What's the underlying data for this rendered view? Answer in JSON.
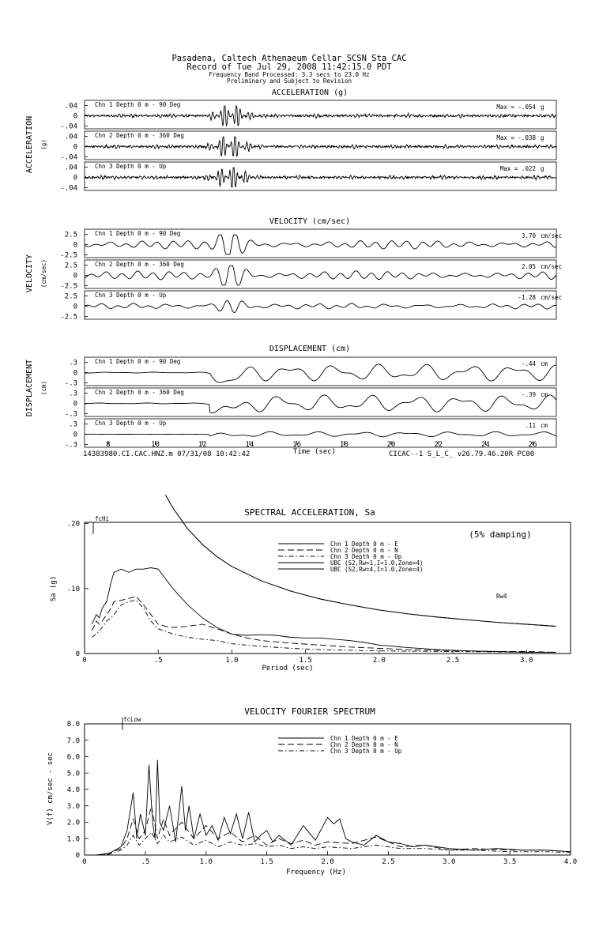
{
  "header": {
    "line1": "Pasadena, Caltech Athenaeum Cellar    SCSN Sta CAC",
    "line2": "Record of Tue Jul 29, 2008 11:42:15.0 PDT",
    "line3": "Frequency Band Processed: 3.3 secs to 23.0 Hz",
    "line4": "Preliminary and Subject to Revision"
  },
  "traces": {
    "xticks": [
      "8",
      "10",
      "12",
      "14",
      "16",
      "18",
      "20",
      "22",
      "24",
      "26"
    ],
    "xlabel": "Time (sec)",
    "footer_left": "14383980.CI.CAC.HNZ.m 07/31/08 10:42:42",
    "footer_right": "CICAC--1  S_L_C_  v26.79.46.20R PC00",
    "groups": [
      {
        "title": "ACCELERATION (g)",
        "side_label": "ACCELERATION",
        "side_unit": "(g)",
        "unit": "g",
        "max_prefix": "Max =",
        "channels": [
          {
            "label": "Chn 1  Depth   0 m - 90 Deg",
            "peak": "-.054",
            "ticks": [
              ".04",
              "0",
              "-.04"
            ]
          },
          {
            "label": "Chn 2  Depth   0 m - 360 Deg",
            "peak": "-.038",
            "ticks": [
              ".04",
              "0",
              "-.04"
            ]
          },
          {
            "label": "Chn 3  Depth   0 m - Up",
            "peak": ".022",
            "ticks": [
              ".04",
              "0",
              "-.04"
            ]
          }
        ]
      },
      {
        "title": "VELOCITY (cm/sec)",
        "side_label": "VELOCITY",
        "side_unit": "(cm/sec)",
        "unit": "cm/sec",
        "max_prefix": "",
        "channels": [
          {
            "label": "Chn 1  Depth   0 m - 90 Deg",
            "peak": "3.70",
            "ticks": [
              "2.5",
              "0",
              "-2.5"
            ]
          },
          {
            "label": "Chn 2  Depth   0 m - 360 Deg",
            "peak": "2.05",
            "ticks": [
              "2.5",
              "0",
              "-2.5"
            ]
          },
          {
            "label": "Chn 3  Depth   0 m - Up",
            "peak": "-1.28",
            "ticks": [
              "2.5",
              "0",
              "-2.5"
            ]
          }
        ]
      },
      {
        "title": "DISPLACEMENT (cm)",
        "side_label": "DISPLACEMENT",
        "side_unit": "(cm)",
        "unit": "cm",
        "max_prefix": "",
        "channels": [
          {
            "label": "Chn 1  Depth   0 m - 90 Deg",
            "peak": "-.44",
            "ticks": [
              ".3",
              "0",
              "-.3"
            ]
          },
          {
            "label": "Chn 2  Depth   0 m - 360 Deg",
            "peak": "-.39",
            "ticks": [
              ".3",
              "0",
              "-.3"
            ]
          },
          {
            "label": "Chn 3  Depth   0 m - Up",
            "peak": ".11",
            "ticks": [
              ".3",
              "0",
              "-.3"
            ]
          }
        ]
      }
    ]
  },
  "chart_data": [
    {
      "type": "line",
      "title": "SPECTRAL ACCELERATION, Sa",
      "xlabel": "Period (sec)",
      "ylabel": "Sa (g)",
      "xlim": [
        0,
        3.2
      ],
      "ylim": [
        0,
        0.2
      ],
      "xticks": [
        0,
        0.5,
        1.0,
        1.5,
        2.0,
        2.5,
        3.0
      ],
      "xtick_labels": [
        "0",
        ".5",
        "1.0",
        "1.5",
        "2.0",
        "2.5",
        "3.0"
      ],
      "yticks": [
        0,
        0.1,
        0.2
      ],
      "ytick_labels": [
        "0",
        ".10",
        ".20"
      ],
      "annotations": [
        "(5% damping)",
        "fcHi",
        "Rw4"
      ],
      "legend_placement": "top-right",
      "legend": [
        {
          "label": "Chn 1  Depth   0 m - E",
          "style": "solid"
        },
        {
          "label": "Chn 2  Depth   0 m - N",
          "style": "dashed"
        },
        {
          "label": "Chn 3  Depth   0 m - Up",
          "style": "dashdot"
        },
        {
          "label": "UBC (S2,Rw=1,I=1.0,Zone=4)",
          "style": "solid"
        },
        {
          "label": "UBC (S2,Rw=4,I=1.0,Zone=4)",
          "style": "solid"
        }
      ],
      "series": [
        {
          "name": "Chn 1  Depth   0 m - E",
          "x": [
            0.05,
            0.08,
            0.1,
            0.12,
            0.15,
            0.18,
            0.2,
            0.25,
            0.3,
            0.35,
            0.4,
            0.45,
            0.5,
            0.55,
            0.6,
            0.7,
            0.8,
            0.9,
            1.0,
            1.1,
            1.2,
            1.3,
            1.4,
            1.5,
            1.6,
            1.7,
            1.8,
            1.9,
            2.0,
            2.2,
            2.4,
            2.6,
            2.8,
            3.0,
            3.2
          ],
          "y": [
            0.045,
            0.06,
            0.055,
            0.07,
            0.08,
            0.11,
            0.125,
            0.13,
            0.125,
            0.13,
            0.13,
            0.132,
            0.13,
            0.115,
            0.1,
            0.075,
            0.055,
            0.04,
            0.03,
            0.028,
            0.029,
            0.028,
            0.025,
            0.024,
            0.024,
            0.022,
            0.02,
            0.017,
            0.013,
            0.009,
            0.006,
            0.004,
            0.003,
            0.002,
            0.002
          ]
        },
        {
          "name": "Chn 2  Depth   0 m - N",
          "x": [
            0.05,
            0.08,
            0.1,
            0.12,
            0.15,
            0.18,
            0.2,
            0.25,
            0.3,
            0.35,
            0.4,
            0.45,
            0.5,
            0.55,
            0.6,
            0.7,
            0.8,
            0.9,
            1.0,
            1.1,
            1.2,
            1.4,
            1.6,
            1.8,
            2.0,
            2.2,
            2.4,
            2.6,
            2.8,
            3.0,
            3.2
          ],
          "y": [
            0.035,
            0.05,
            0.045,
            0.05,
            0.06,
            0.07,
            0.08,
            0.082,
            0.085,
            0.088,
            0.075,
            0.06,
            0.045,
            0.042,
            0.04,
            0.042,
            0.045,
            0.038,
            0.03,
            0.024,
            0.02,
            0.016,
            0.013,
            0.01,
            0.008,
            0.006,
            0.005,
            0.004,
            0.003,
            0.003,
            0.002
          ]
        },
        {
          "name": "Chn 3  Depth   0 m - Up",
          "x": [
            0.05,
            0.08,
            0.1,
            0.12,
            0.15,
            0.18,
            0.2,
            0.25,
            0.3,
            0.35,
            0.4,
            0.45,
            0.5,
            0.6,
            0.7,
            0.8,
            0.9,
            1.0,
            1.2,
            1.4,
            1.6,
            1.8,
            2.0,
            2.5,
            3.0,
            3.2
          ],
          "y": [
            0.025,
            0.03,
            0.035,
            0.04,
            0.05,
            0.055,
            0.06,
            0.075,
            0.08,
            0.082,
            0.07,
            0.05,
            0.038,
            0.03,
            0.025,
            0.022,
            0.02,
            0.015,
            0.011,
            0.008,
            0.006,
            0.005,
            0.004,
            0.003,
            0.002,
            0.002
          ]
        },
        {
          "name": "UBC (S2,Rw=1,I=1.0,Zone=4)",
          "x": [
            0.55,
            0.6,
            0.7,
            0.8,
            0.9,
            1.0,
            1.2,
            1.4,
            1.6,
            1.8,
            2.0,
            2.2,
            2.4,
            2.6,
            2.8,
            3.0,
            3.2
          ],
          "y": [
            0.244,
            0.224,
            0.192,
            0.168,
            0.149,
            0.134,
            0.112,
            0.096,
            0.084,
            0.075,
            0.067,
            0.061,
            0.056,
            0.052,
            0.048,
            0.045,
            0.042
          ]
        },
        {
          "name": "UBC (S2,Rw=4,I=1.0,Zone=4)",
          "x": [
            0.55,
            0.6,
            0.7,
            0.8,
            0.9,
            1.0,
            1.2,
            1.4,
            1.6,
            1.8,
            2.0,
            2.2,
            2.4,
            2.6,
            2.8,
            3.0,
            3.2
          ],
          "y": [
            0.244,
            0.224,
            0.192,
            0.168,
            0.149,
            0.134,
            0.112,
            0.096,
            0.084,
            0.075,
            0.067,
            0.061,
            0.056,
            0.052,
            0.048,
            0.045,
            0.042
          ]
        }
      ]
    },
    {
      "type": "line",
      "title": "VELOCITY FOURIER SPECTRUM",
      "xlabel": "Frequency (Hz)",
      "ylabel": "V(f)   cm/sec - sec",
      "xlim": [
        0,
        4.0
      ],
      "ylim": [
        0,
        8.0
      ],
      "xticks": [
        0,
        0.5,
        1.0,
        1.5,
        2.0,
        2.5,
        3.0,
        3.5,
        4.0
      ],
      "xtick_labels": [
        "0",
        ".5",
        "1.0",
        "1.5",
        "2.0",
        "2.5",
        "3.0",
        "3.5",
        "4.0"
      ],
      "yticks": [
        0,
        1,
        2,
        3,
        4,
        5,
        6,
        7,
        8
      ],
      "ytick_labels": [
        "0",
        "1.0",
        "2.0",
        "3.0",
        "4.0",
        "5.0",
        "6.0",
        "7.0",
        "8.0"
      ],
      "annotations": [
        "fcLow"
      ],
      "legend_placement": "top-center",
      "legend": [
        {
          "label": "Chn 1  Depth   0 m - E",
          "style": "solid"
        },
        {
          "label": "Chn 2  Depth   0 m - N",
          "style": "dashed"
        },
        {
          "label": "Chn 3  Depth   0 m - Up",
          "style": "dashdot"
        }
      ],
      "series": [
        {
          "name": "Chn 1  Depth   0 m - E",
          "x": [
            0.1,
            0.2,
            0.3,
            0.35,
            0.4,
            0.43,
            0.46,
            0.5,
            0.53,
            0.56,
            0.58,
            0.6,
            0.62,
            0.65,
            0.7,
            0.75,
            0.8,
            0.83,
            0.86,
            0.9,
            0.95,
            1.0,
            1.05,
            1.1,
            1.15,
            1.2,
            1.25,
            1.3,
            1.35,
            1.4,
            1.45,
            1.5,
            1.55,
            1.6,
            1.7,
            1.8,
            1.9,
            2.0,
            2.05,
            2.1,
            2.15,
            2.2,
            2.3,
            2.4,
            2.5,
            2.6,
            2.7,
            2.8,
            3.0,
            3.2,
            3.4,
            3.6,
            3.8,
            4.0
          ],
          "y": [
            0.0,
            0.1,
            0.5,
            1.5,
            3.8,
            1.0,
            2.5,
            1.2,
            5.5,
            2.0,
            1.0,
            5.8,
            2.0,
            1.5,
            3.0,
            0.8,
            4.2,
            1.5,
            3.0,
            1.0,
            2.5,
            1.2,
            1.8,
            0.9,
            2.3,
            1.3,
            2.5,
            1.0,
            2.6,
            0.8,
            1.2,
            1.5,
            0.8,
            1.2,
            0.6,
            1.8,
            0.9,
            2.3,
            1.9,
            2.2,
            1.0,
            0.8,
            0.6,
            1.2,
            0.8,
            0.7,
            0.5,
            0.6,
            0.4,
            0.3,
            0.4,
            0.3,
            0.3,
            0.2
          ]
        },
        {
          "name": "Chn 2  Depth   0 m - N",
          "x": [
            0.1,
            0.2,
            0.3,
            0.35,
            0.4,
            0.45,
            0.5,
            0.55,
            0.6,
            0.65,
            0.7,
            0.8,
            0.9,
            1.0,
            1.1,
            1.2,
            1.3,
            1.4,
            1.5,
            1.6,
            1.7,
            1.8,
            1.9,
            2.0,
            2.2,
            2.4,
            2.6,
            2.8,
            3.0,
            3.2,
            3.5,
            3.8,
            4.0
          ],
          "y": [
            0.0,
            0.1,
            0.4,
            1.0,
            2.2,
            1.0,
            1.5,
            3.0,
            1.0,
            2.2,
            1.2,
            2.0,
            1.0,
            1.8,
            1.0,
            1.4,
            0.8,
            1.2,
            0.6,
            1.0,
            0.7,
            0.9,
            0.6,
            0.8,
            0.7,
            1.1,
            0.5,
            0.6,
            0.3,
            0.4,
            0.3,
            0.3,
            0.2
          ]
        },
        {
          "name": "Chn 3  Depth   0 m - Up",
          "x": [
            0.1,
            0.2,
            0.3,
            0.35,
            0.4,
            0.45,
            0.5,
            0.55,
            0.6,
            0.65,
            0.7,
            0.8,
            0.9,
            1.0,
            1.1,
            1.2,
            1.3,
            1.4,
            1.5,
            1.6,
            1.7,
            1.8,
            1.9,
            2.0,
            2.2,
            2.4,
            2.6,
            2.8,
            3.0,
            3.2,
            3.5,
            3.8,
            4.0
          ],
          "y": [
            0.0,
            0.05,
            0.3,
            0.6,
            1.2,
            0.6,
            1.0,
            1.4,
            0.7,
            1.2,
            0.8,
            1.1,
            0.6,
            0.9,
            0.5,
            0.8,
            0.6,
            0.7,
            0.5,
            0.6,
            0.4,
            0.5,
            0.4,
            0.5,
            0.4,
            0.6,
            0.4,
            0.4,
            0.3,
            0.3,
            0.2,
            0.2,
            0.15
          ]
        }
      ]
    }
  ]
}
